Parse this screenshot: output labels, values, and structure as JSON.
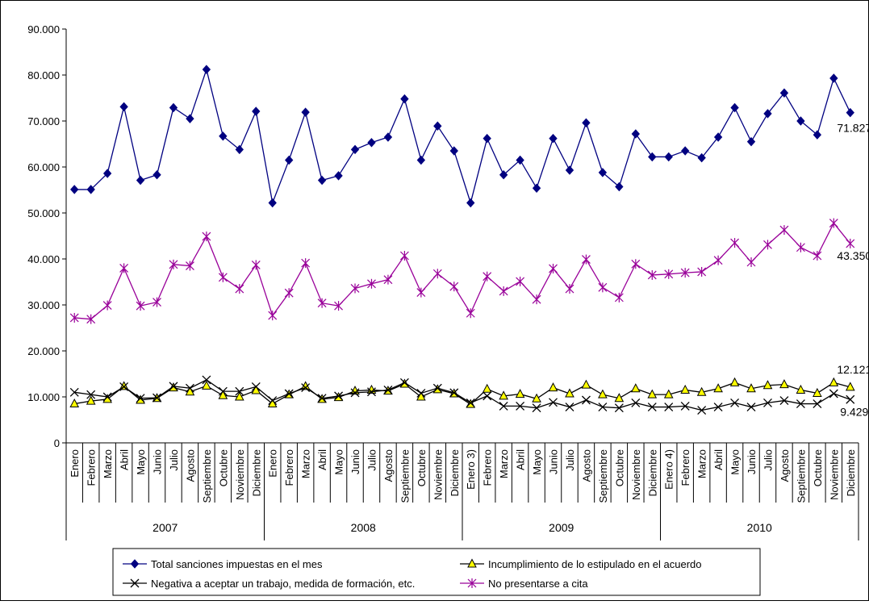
{
  "chart_data": {
    "type": "line",
    "title": "",
    "xlabel": "",
    "ylabel": "",
    "ylim": [
      0,
      90000
    ],
    "yticks": [
      0,
      10000,
      20000,
      30000,
      40000,
      50000,
      60000,
      70000,
      80000,
      90000
    ],
    "ytick_labels": [
      "0",
      "10.000",
      "20.000",
      "30.000",
      "40.000",
      "50.000",
      "60.000",
      "70.000",
      "80.000",
      "90.000"
    ],
    "grid": false,
    "legend_position": "bottom",
    "categories": [
      "Enero",
      "Febrero",
      "Marzo",
      "Abril",
      "Mayo",
      "Junio",
      "Julio",
      "Agosto",
      "Septiembre",
      "Octubre",
      "Noviembre",
      "Diciembre",
      "Enero",
      "Febrero",
      "Marzo",
      "Abril",
      "Mayo",
      "Junio",
      "Julio",
      "Agosto",
      "Septiembre",
      "Octubre",
      "Noviembre",
      "Diciembre",
      "Enero  3)",
      "Febrero",
      "Marzo",
      "Abril",
      "Mayo",
      "Junio",
      "Julio",
      "Agosto",
      "Septiembre",
      "Octubre",
      "Noviembre",
      "Diciembre",
      "Enero  4)",
      "Febrero",
      "Marzo",
      "Abril",
      "Mayo",
      "Junio",
      "Julio",
      "Agosto",
      "Septiembre",
      "Octubre",
      "Noviembre",
      "Diciembre"
    ],
    "years": [
      {
        "label": "2007",
        "start": 0,
        "count": 12
      },
      {
        "label": "2008",
        "start": 12,
        "count": 12
      },
      {
        "label": "2009",
        "start": 24,
        "count": 12
      },
      {
        "label": "2010",
        "start": 36,
        "count": 12
      }
    ],
    "series": [
      {
        "name": "Total sanciones impuestas en el mes",
        "color": "#000080",
        "marker": "diamond",
        "values": [
          55100,
          55100,
          58600,
          73100,
          57100,
          58300,
          72900,
          70500,
          81200,
          66700,
          63800,
          72100,
          52200,
          61500,
          71900,
          57100,
          58100,
          63800,
          65300,
          66500,
          74800,
          61500,
          68900,
          63500,
          52200,
          66200,
          58300,
          61500,
          55400,
          66200,
          59300,
          69600,
          58800,
          55700,
          67200,
          62200,
          62200,
          63500,
          62000,
          66500,
          72900,
          65500,
          71600,
          76100,
          70000,
          67000,
          79300,
          71827
        ],
        "end_label": "71.827"
      },
      {
        "name": "No presentarse a cita",
        "color": "#990099",
        "marker": "star",
        "values": [
          27200,
          26900,
          29900,
          38000,
          29800,
          30600,
          38800,
          38500,
          44900,
          36000,
          33500,
          38700,
          27700,
          32600,
          39100,
          30400,
          29800,
          33600,
          34600,
          35500,
          40700,
          32700,
          36800,
          34000,
          28200,
          36200,
          33000,
          35100,
          31200,
          37900,
          33500,
          39900,
          33800,
          31600,
          38900,
          36500,
          36700,
          37000,
          37200,
          39700,
          43500,
          39300,
          43100,
          46300,
          42500,
          40700,
          47800,
          43350
        ],
        "end_label": "43.350"
      },
      {
        "name": "Incumplimiento de lo estipulado en el acuerdo",
        "color": "#000000",
        "marker": "triangle",
        "marker_fill": "#ffff00",
        "values": [
          8500,
          9100,
          9500,
          12300,
          9300,
          9700,
          12000,
          11100,
          12400,
          10300,
          10000,
          11400,
          8500,
          10500,
          12300,
          9500,
          9900,
          11300,
          11500,
          11300,
          12800,
          10000,
          11600,
          10700,
          8400,
          11700,
          10200,
          10600,
          9600,
          12000,
          10700,
          12600,
          10500,
          9700,
          11800,
          10500,
          10500,
          11500,
          11000,
          11800,
          13100,
          11800,
          12500,
          12700,
          11500,
          10800,
          13100,
          12121
        ],
        "end_label": "12.121"
      },
      {
        "name": "Negativa a aceptar un trabajo, medida de formación, etc.",
        "color": "#000000",
        "marker": "x",
        "values": [
          11000,
          10500,
          10000,
          12200,
          9700,
          9800,
          12300,
          11900,
          13700,
          11200,
          11200,
          12200,
          9200,
          10700,
          12000,
          9700,
          10200,
          10900,
          11100,
          11500,
          13100,
          10800,
          11900,
          10900,
          8700,
          10200,
          8000,
          8000,
          7600,
          8800,
          7800,
          9300,
          7800,
          7600,
          8700,
          7800,
          7800,
          8000,
          7100,
          7800,
          8700,
          7800,
          8700,
          9200,
          8500,
          8500,
          10700,
          9429
        ],
        "end_label": "9.429"
      }
    ]
  }
}
